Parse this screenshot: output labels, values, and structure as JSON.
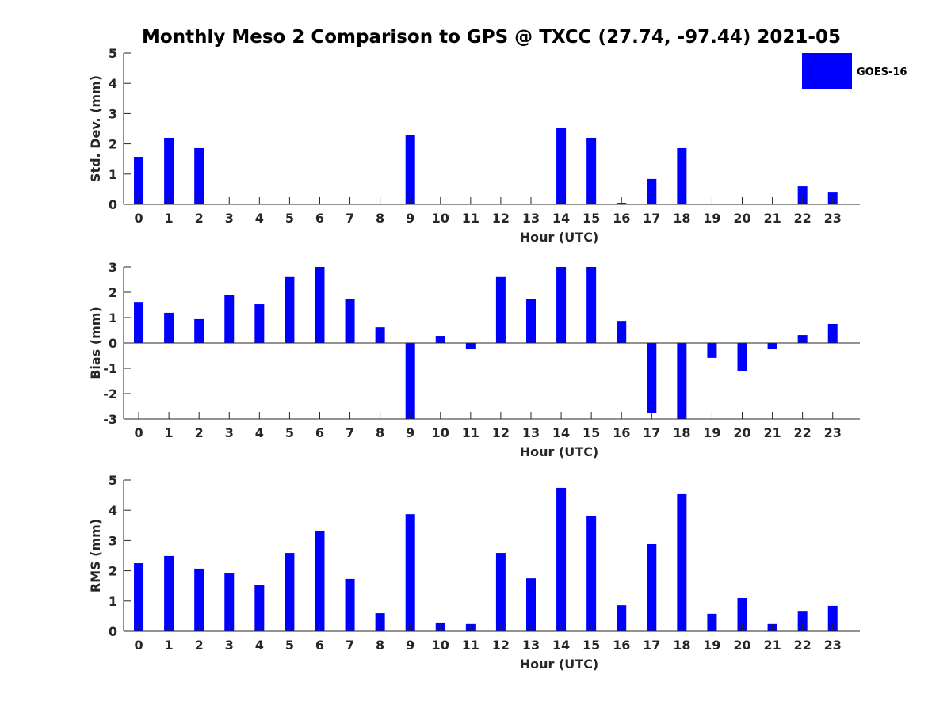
{
  "title": "Monthly Meso 2 Comparison to GPS @ TXCC (27.74, -97.44) 2021-05",
  "legend": {
    "label": "GOES-16",
    "color": "#0000ff",
    "placement": "top-right"
  },
  "chart_data": [
    {
      "type": "bar",
      "xlabel": "Hour (UTC)",
      "ylabel": "Std. Dev. (mm)",
      "ylim": [
        0,
        5
      ],
      "xlim": [
        -0.5,
        23.9
      ],
      "yticks": [
        0,
        1,
        2,
        3,
        4,
        5
      ],
      "categories": [
        "0",
        "1",
        "2",
        "3",
        "4",
        "5",
        "6",
        "7",
        "8",
        "9",
        "10",
        "11",
        "12",
        "13",
        "14",
        "15",
        "16",
        "17",
        "18",
        "19",
        "20",
        "21",
        "22",
        "23"
      ],
      "series": [
        {
          "name": "GOES-16",
          "values": [
            1.57,
            2.2,
            1.86,
            0,
            0,
            0,
            0,
            0,
            0,
            2.28,
            0,
            0,
            0,
            0,
            2.54,
            2.2,
            0.05,
            0.84,
            1.86,
            0,
            0,
            0,
            0.6,
            0.39
          ]
        }
      ]
    },
    {
      "type": "bar",
      "xlabel": "Hour (UTC)",
      "ylabel": "Bias (mm)",
      "ylim": [
        -3,
        3
      ],
      "xlim": [
        -0.5,
        23.9
      ],
      "yticks": [
        -3,
        -2,
        -1,
        0,
        1,
        2,
        3
      ],
      "categories": [
        "0",
        "1",
        "2",
        "3",
        "4",
        "5",
        "6",
        "7",
        "8",
        "9",
        "10",
        "11",
        "12",
        "13",
        "14",
        "15",
        "16",
        "17",
        "18",
        "19",
        "20",
        "21",
        "22",
        "23"
      ],
      "series": [
        {
          "name": "GOES-16",
          "values": [
            1.62,
            1.19,
            0.94,
            1.9,
            1.53,
            2.6,
            3,
            1.72,
            0.62,
            -3,
            0.28,
            -0.25,
            2.6,
            1.75,
            3,
            3,
            0.87,
            -2.78,
            -3,
            -0.59,
            -1.12,
            -0.25,
            0.31,
            0.75
          ]
        }
      ]
    },
    {
      "type": "bar",
      "xlabel": "Hour (UTC)",
      "ylabel": "RMS (mm)",
      "ylim": [
        0,
        5
      ],
      "xlim": [
        -0.5,
        23.9
      ],
      "yticks": [
        0,
        1,
        2,
        3,
        4,
        5
      ],
      "categories": [
        "0",
        "1",
        "2",
        "3",
        "4",
        "5",
        "6",
        "7",
        "8",
        "9",
        "10",
        "11",
        "12",
        "13",
        "14",
        "15",
        "16",
        "17",
        "18",
        "19",
        "20",
        "21",
        "22",
        "23"
      ],
      "series": [
        {
          "name": "GOES-16",
          "values": [
            2.25,
            2.49,
            2.07,
            1.91,
            1.52,
            2.59,
            3.32,
            1.73,
            0.6,
            3.87,
            0.29,
            0.24,
            2.59,
            1.75,
            4.74,
            3.82,
            0.86,
            2.88,
            4.53,
            0.58,
            1.1,
            0.24,
            0.65,
            0.84
          ]
        }
      ]
    }
  ]
}
